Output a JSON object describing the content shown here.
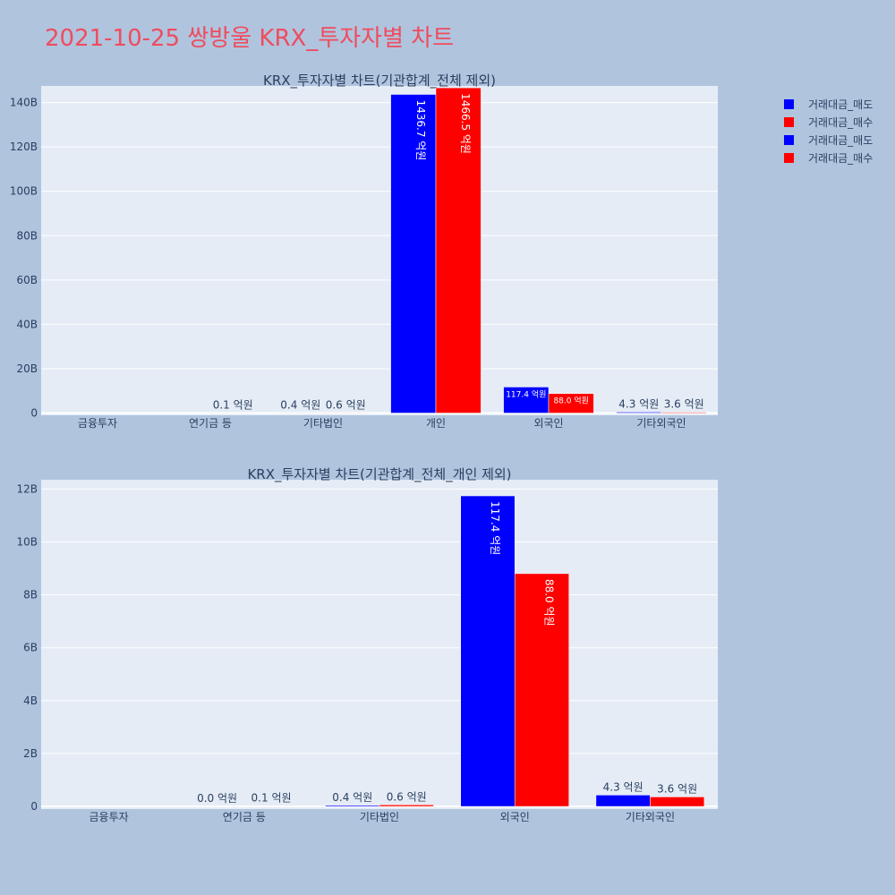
{
  "page_title": "2021-10-25 쌍방울 KRX_투자자별 차트",
  "colors": {
    "sell": "#0000ff",
    "buy": "#ff0000",
    "plot_bg": "#e5ecf6",
    "page_bg": "#b0c4de",
    "title": "#ef4c5e"
  },
  "legend": [
    {
      "name": "거래대금_매도",
      "color": "#0000ff"
    },
    {
      "name": "거래대금_매수",
      "color": "#ff0000"
    },
    {
      "name": "거래대금_매도",
      "color": "#0000ff"
    },
    {
      "name": "거래대금_매수",
      "color": "#ff0000"
    }
  ],
  "chart_data": [
    {
      "type": "bar",
      "title": "KRX_투자자별 차트(기관합계_전체 제외)",
      "categories": [
        "금융투자",
        "연기금 등",
        "기타법인",
        "개인",
        "외국인",
        "기타외국인"
      ],
      "series": [
        {
          "name": "거래대금_매도",
          "values": [
            0,
            0,
            0.04,
            143.67,
            11.74,
            0.43
          ],
          "labels": [
            "",
            "",
            "0.4 억원",
            "1436.7 억원",
            "117.4 억원",
            "4.3 억원"
          ]
        },
        {
          "name": "거래대금_매수",
          "values": [
            0,
            0.01,
            0.06,
            146.65,
            8.8,
            0.36
          ],
          "labels": [
            "",
            "0.1 억원",
            "0.6 억원",
            "1466.5 억원",
            "88.0 억원",
            "3.6 억원"
          ]
        }
      ],
      "yticks": [
        0,
        20,
        40,
        60,
        80,
        100,
        120,
        140
      ],
      "ytick_labels": [
        "0",
        "20B",
        "40B",
        "60B",
        "80B",
        "100B",
        "120B",
        "140B"
      ],
      "ylim": [
        -1,
        147.5
      ]
    },
    {
      "type": "bar",
      "title": "KRX_투자자별 차트(기관합계_전체_개인 제외)",
      "categories": [
        "금융투자",
        "연기금 등",
        "기타법인",
        "외국인",
        "기타외국인"
      ],
      "series": [
        {
          "name": "거래대금_매도",
          "values": [
            0,
            0.0,
            0.04,
            11.74,
            0.43
          ],
          "labels": [
            "",
            "0.0 억원",
            "0.4 억원",
            "117.4 억원",
            "4.3 억원"
          ]
        },
        {
          "name": "거래대금_매수",
          "values": [
            0,
            0.01,
            0.06,
            8.8,
            0.36
          ],
          "labels": [
            "",
            "0.1 억원",
            "0.6 억원",
            "88.0 억원",
            "3.6 억원"
          ]
        }
      ],
      "yticks": [
        0,
        2,
        4,
        6,
        8,
        10,
        12
      ],
      "ytick_labels": [
        "0",
        "2B",
        "4B",
        "6B",
        "8B",
        "10B",
        "12B"
      ],
      "ylim": [
        -0.1,
        12.35
      ]
    }
  ]
}
